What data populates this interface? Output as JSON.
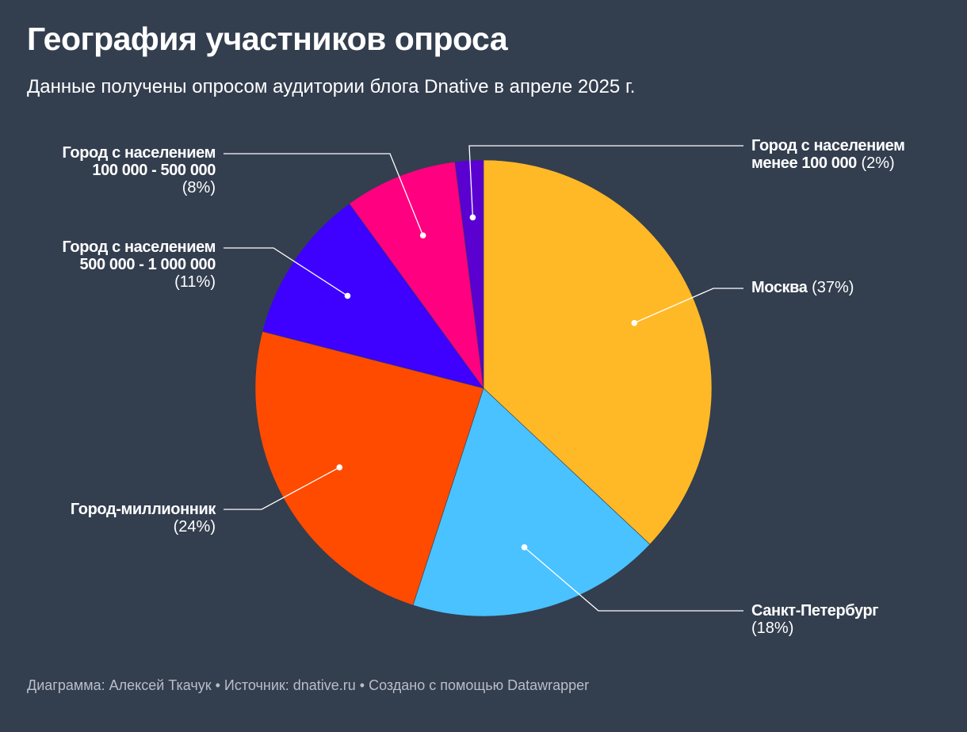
{
  "chart_data": {
    "type": "pie",
    "title": "География участников опроса",
    "subtitle": "Данные получены опросом аудитории блога Dnative в апреле 2025 г.",
    "slices": [
      {
        "label": "Москва",
        "value": 37,
        "pct_text": "(37%)",
        "color": "#ffb926"
      },
      {
        "label": "Санкт-Петербург",
        "value": 18,
        "pct_text": "(18%)",
        "color": "#49c2ff"
      },
      {
        "label": "Город-миллионник",
        "value": 24,
        "pct_text": "(24%)",
        "color": "#ff4b00"
      },
      {
        "label": "Город с населением 500 000 - 1 000 000",
        "value": 11,
        "pct_text": "(11%)",
        "color": "#3e00ff"
      },
      {
        "label": "Город с населением 100 000 - 500 000",
        "value": 8,
        "pct_text": "(8%)",
        "color": "#ff0080"
      },
      {
        "label": "Город с населением менее 100 000",
        "value": 2,
        "pct_text": "(2%)",
        "color": "#5a00d1"
      }
    ],
    "label_lines": {
      "moscow": [
        "Москва"
      ],
      "spb": [
        "Санкт-Петербург"
      ],
      "million": [
        "Город-миллионник"
      ],
      "c500k": [
        "Город с населением",
        "500 000 - 1 000 000"
      ],
      "c100k": [
        "Город с населением",
        "100 000 - 500 000"
      ],
      "small": [
        "Город с населением",
        "менее 100 000"
      ]
    }
  },
  "footer": "Диаграмма: Алексей Ткачук • Источник: dnative.ru • Создано с помощью Datawrapper"
}
